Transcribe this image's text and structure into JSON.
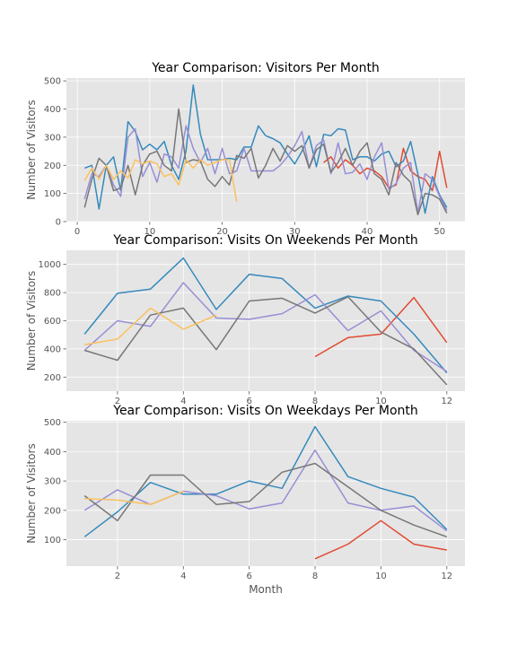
{
  "colors": {
    "panel_bg": "#E5E5E5",
    "grid": "#FFFFFF",
    "series": [
      "#E24A33",
      "#348ABD",
      "#988ED5",
      "#777777",
      "#FBC15E"
    ]
  },
  "chart_data": [
    {
      "type": "line",
      "title": "Year Comparison: Visitors Per Month",
      "xlabel": "",
      "ylabel": "Number of Visitors",
      "xlim": [
        -1.5,
        53.5
      ],
      "ylim": [
        0,
        510
      ],
      "xticks": [
        0,
        10,
        20,
        30,
        40,
        50
      ],
      "yticks": [
        0,
        100,
        200,
        300,
        400,
        500
      ],
      "grid": true,
      "series": [
        {
          "x": [
            34,
            35,
            36,
            37,
            38,
            39,
            40,
            41,
            42,
            43,
            44,
            45,
            46,
            47,
            48,
            49,
            50,
            51
          ],
          "values": [
            210,
            230,
            190,
            220,
            200,
            170,
            190,
            180,
            160,
            120,
            130,
            260,
            180,
            160,
            150,
            110,
            250,
            120
          ]
        },
        {
          "x": [
            1,
            2,
            3,
            4,
            5,
            6,
            7,
            8,
            9,
            10,
            11,
            12,
            13,
            14,
            15,
            16,
            17,
            18,
            19,
            20,
            21,
            22,
            23,
            24,
            25,
            26,
            27,
            28,
            29,
            30,
            31,
            32,
            33,
            34,
            35,
            36,
            37,
            38,
            39,
            40,
            41,
            42,
            43,
            44,
            45,
            46,
            47,
            48,
            49,
            50,
            51
          ],
          "values": [
            190,
            200,
            45,
            200,
            230,
            110,
            355,
            320,
            255,
            275,
            255,
            285,
            200,
            150,
            250,
            485,
            310,
            220,
            220,
            220,
            225,
            220,
            265,
            265,
            340,
            305,
            295,
            280,
            240,
            205,
            250,
            305,
            195,
            310,
            305,
            330,
            325,
            220,
            230,
            230,
            215,
            240,
            250,
            195,
            215,
            285,
            170,
            30,
            160,
            95,
            50
          ]
        },
        {
          "x": [
            1,
            2,
            3,
            4,
            5,
            6,
            7,
            8,
            9,
            10,
            11,
            12,
            13,
            14,
            15,
            16,
            17,
            18,
            19,
            20,
            21,
            22,
            23,
            24,
            27,
            28,
            29,
            30,
            31,
            32,
            33,
            34,
            35,
            36,
            37,
            38,
            39,
            40,
            41,
            42,
            43,
            44,
            45,
            46,
            47,
            48,
            49,
            50,
            51
          ],
          "values": [
            80,
            170,
            160,
            200,
            130,
            90,
            300,
            330,
            160,
            210,
            140,
            240,
            230,
            190,
            340,
            260,
            210,
            260,
            170,
            260,
            170,
            180,
            260,
            180,
            180,
            200,
            230,
            270,
            320,
            190,
            270,
            290,
            170,
            280,
            170,
            175,
            205,
            150,
            230,
            280,
            115,
            135,
            190,
            210,
            30,
            170,
            150,
            90,
            40
          ]
        },
        {
          "x": [
            1,
            2,
            3,
            4,
            5,
            6,
            7,
            8,
            9,
            10,
            11,
            12,
            13,
            14,
            15,
            16,
            17,
            18,
            19,
            20,
            21,
            22,
            23,
            24,
            25,
            26,
            27,
            28,
            29,
            30,
            31,
            32,
            33,
            34,
            35,
            36,
            37,
            38,
            39,
            40,
            41,
            42,
            43,
            44,
            45,
            46,
            47,
            48,
            49,
            50,
            51
          ],
          "values": [
            50,
            150,
            225,
            200,
            110,
            120,
            200,
            95,
            200,
            240,
            250,
            200,
            180,
            400,
            210,
            220,
            215,
            150,
            125,
            160,
            130,
            235,
            225,
            260,
            155,
            200,
            260,
            215,
            270,
            250,
            270,
            190,
            255,
            275,
            175,
            210,
            260,
            200,
            250,
            280,
            170,
            150,
            95,
            210,
            165,
            140,
            25,
            100,
            95,
            80,
            30
          ]
        },
        {
          "x": [
            1,
            2,
            3,
            4,
            5,
            6,
            7,
            8,
            9,
            10,
            11,
            12,
            13,
            14,
            15,
            16,
            17,
            18,
            19,
            20,
            21,
            22
          ],
          "values": [
            145,
            190,
            150,
            200,
            150,
            180,
            155,
            220,
            205,
            215,
            205,
            160,
            170,
            130,
            220,
            190,
            220,
            200,
            210,
            220,
            220,
            70
          ]
        }
      ]
    },
    {
      "type": "line",
      "title": "Year Comparison: Visits On Weekends Per Month",
      "xlabel": "",
      "ylabel": "Number of Visitors",
      "xlim": [
        0.45,
        12.55
      ],
      "ylim": [
        100,
        1100
      ],
      "xticks": [
        2,
        4,
        6,
        8,
        10,
        12
      ],
      "yticks": [
        200,
        400,
        600,
        800,
        1000
      ],
      "grid": true,
      "series": [
        {
          "x": [
            8,
            9,
            10,
            11,
            12
          ],
          "values": [
            345,
            480,
            505,
            765,
            445
          ]
        },
        {
          "x": [
            1,
            2,
            3,
            4,
            5,
            6,
            7,
            8,
            9,
            10,
            11,
            12
          ],
          "values": [
            505,
            795,
            825,
            1045,
            680,
            930,
            900,
            690,
            775,
            740,
            505,
            230
          ]
        },
        {
          "x": [
            1,
            2,
            3,
            4,
            5,
            6,
            7,
            8,
            9,
            10,
            11,
            12
          ],
          "values": [
            390,
            600,
            560,
            870,
            620,
            610,
            650,
            785,
            530,
            670,
            390,
            240
          ]
        },
        {
          "x": [
            1,
            2,
            3,
            4,
            5,
            6,
            7,
            8,
            9,
            10,
            11,
            12
          ],
          "values": [
            390,
            320,
            640,
            690,
            395,
            740,
            760,
            655,
            770,
            520,
            400,
            145
          ]
        },
        {
          "x": [
            1,
            2,
            3,
            4,
            5
          ],
          "values": [
            430,
            470,
            690,
            540,
            640
          ]
        }
      ]
    },
    {
      "type": "line",
      "title": "Year Comparison: Visits On Weekdays Per Month",
      "xlabel": "Month",
      "ylabel": "Number of Visitors",
      "xlim": [
        0.45,
        12.55
      ],
      "ylim": [
        10,
        505
      ],
      "xticks": [
        2,
        4,
        6,
        8,
        10,
        12
      ],
      "yticks": [
        100,
        200,
        300,
        400,
        500
      ],
      "grid": true,
      "series": [
        {
          "x": [
            8,
            9,
            10,
            11,
            12
          ],
          "values": [
            35,
            85,
            165,
            85,
            65
          ]
        },
        {
          "x": [
            1,
            2,
            3,
            4,
            5,
            6,
            7,
            8,
            9,
            10,
            11,
            12
          ],
          "values": [
            110,
            195,
            295,
            255,
            255,
            300,
            275,
            485,
            315,
            275,
            245,
            135
          ]
        },
        {
          "x": [
            1,
            2,
            3,
            4,
            5,
            6,
            7,
            8,
            9,
            10,
            11,
            12
          ],
          "values": [
            200,
            270,
            220,
            265,
            250,
            205,
            225,
            405,
            225,
            200,
            215,
            130
          ]
        },
        {
          "x": [
            1,
            2,
            3,
            4,
            5,
            6,
            7,
            8,
            9,
            10,
            11,
            12
          ],
          "values": [
            250,
            165,
            320,
            320,
            220,
            230,
            330,
            360,
            280,
            200,
            150,
            110
          ]
        },
        {
          "x": [
            1,
            2,
            3,
            4
          ],
          "values": [
            240,
            235,
            220,
            265
          ]
        }
      ]
    }
  ]
}
